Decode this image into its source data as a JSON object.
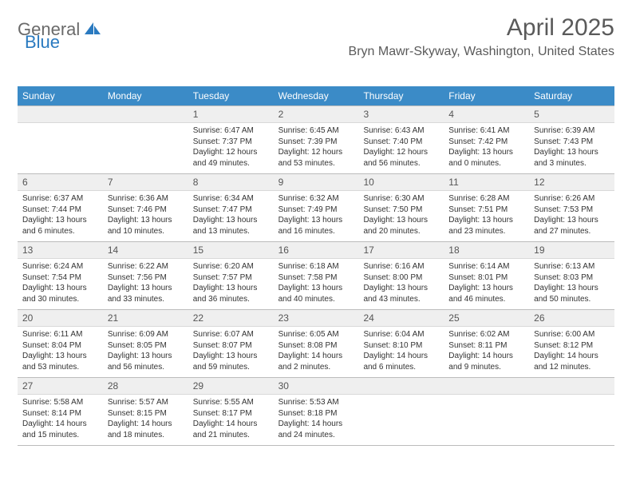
{
  "brand": {
    "text1": "General",
    "text2": "Blue"
  },
  "header": {
    "month_title": "April 2025",
    "location": "Bryn Mawr-Skyway, Washington, United States"
  },
  "colors": {
    "header_bar": "#3b8bc7",
    "brand_grey": "#6a6a6a",
    "brand_blue": "#2a7ac0",
    "text": "#333333",
    "daynum_bg": "#efefef",
    "grid_border": "#bcbcbc"
  },
  "typography": {
    "month_title_fontsize": 30,
    "location_fontsize": 16,
    "dow_fontsize": 12,
    "daynum_fontsize": 12,
    "body_fontsize": 10
  },
  "days_of_week": [
    "Sunday",
    "Monday",
    "Tuesday",
    "Wednesday",
    "Thursday",
    "Friday",
    "Saturday"
  ],
  "weeks": [
    [
      {
        "n": "",
        "sunrise": "",
        "sunset": "",
        "daylight": ""
      },
      {
        "n": "",
        "sunrise": "",
        "sunset": "",
        "daylight": ""
      },
      {
        "n": "1",
        "sunrise": "Sunrise: 6:47 AM",
        "sunset": "Sunset: 7:37 PM",
        "daylight": "Daylight: 12 hours and 49 minutes."
      },
      {
        "n": "2",
        "sunrise": "Sunrise: 6:45 AM",
        "sunset": "Sunset: 7:39 PM",
        "daylight": "Daylight: 12 hours and 53 minutes."
      },
      {
        "n": "3",
        "sunrise": "Sunrise: 6:43 AM",
        "sunset": "Sunset: 7:40 PM",
        "daylight": "Daylight: 12 hours and 56 minutes."
      },
      {
        "n": "4",
        "sunrise": "Sunrise: 6:41 AM",
        "sunset": "Sunset: 7:42 PM",
        "daylight": "Daylight: 13 hours and 0 minutes."
      },
      {
        "n": "5",
        "sunrise": "Sunrise: 6:39 AM",
        "sunset": "Sunset: 7:43 PM",
        "daylight": "Daylight: 13 hours and 3 minutes."
      }
    ],
    [
      {
        "n": "6",
        "sunrise": "Sunrise: 6:37 AM",
        "sunset": "Sunset: 7:44 PM",
        "daylight": "Daylight: 13 hours and 6 minutes."
      },
      {
        "n": "7",
        "sunrise": "Sunrise: 6:36 AM",
        "sunset": "Sunset: 7:46 PM",
        "daylight": "Daylight: 13 hours and 10 minutes."
      },
      {
        "n": "8",
        "sunrise": "Sunrise: 6:34 AM",
        "sunset": "Sunset: 7:47 PM",
        "daylight": "Daylight: 13 hours and 13 minutes."
      },
      {
        "n": "9",
        "sunrise": "Sunrise: 6:32 AM",
        "sunset": "Sunset: 7:49 PM",
        "daylight": "Daylight: 13 hours and 16 minutes."
      },
      {
        "n": "10",
        "sunrise": "Sunrise: 6:30 AM",
        "sunset": "Sunset: 7:50 PM",
        "daylight": "Daylight: 13 hours and 20 minutes."
      },
      {
        "n": "11",
        "sunrise": "Sunrise: 6:28 AM",
        "sunset": "Sunset: 7:51 PM",
        "daylight": "Daylight: 13 hours and 23 minutes."
      },
      {
        "n": "12",
        "sunrise": "Sunrise: 6:26 AM",
        "sunset": "Sunset: 7:53 PM",
        "daylight": "Daylight: 13 hours and 27 minutes."
      }
    ],
    [
      {
        "n": "13",
        "sunrise": "Sunrise: 6:24 AM",
        "sunset": "Sunset: 7:54 PM",
        "daylight": "Daylight: 13 hours and 30 minutes."
      },
      {
        "n": "14",
        "sunrise": "Sunrise: 6:22 AM",
        "sunset": "Sunset: 7:56 PM",
        "daylight": "Daylight: 13 hours and 33 minutes."
      },
      {
        "n": "15",
        "sunrise": "Sunrise: 6:20 AM",
        "sunset": "Sunset: 7:57 PM",
        "daylight": "Daylight: 13 hours and 36 minutes."
      },
      {
        "n": "16",
        "sunrise": "Sunrise: 6:18 AM",
        "sunset": "Sunset: 7:58 PM",
        "daylight": "Daylight: 13 hours and 40 minutes."
      },
      {
        "n": "17",
        "sunrise": "Sunrise: 6:16 AM",
        "sunset": "Sunset: 8:00 PM",
        "daylight": "Daylight: 13 hours and 43 minutes."
      },
      {
        "n": "18",
        "sunrise": "Sunrise: 6:14 AM",
        "sunset": "Sunset: 8:01 PM",
        "daylight": "Daylight: 13 hours and 46 minutes."
      },
      {
        "n": "19",
        "sunrise": "Sunrise: 6:13 AM",
        "sunset": "Sunset: 8:03 PM",
        "daylight": "Daylight: 13 hours and 50 minutes."
      }
    ],
    [
      {
        "n": "20",
        "sunrise": "Sunrise: 6:11 AM",
        "sunset": "Sunset: 8:04 PM",
        "daylight": "Daylight: 13 hours and 53 minutes."
      },
      {
        "n": "21",
        "sunrise": "Sunrise: 6:09 AM",
        "sunset": "Sunset: 8:05 PM",
        "daylight": "Daylight: 13 hours and 56 minutes."
      },
      {
        "n": "22",
        "sunrise": "Sunrise: 6:07 AM",
        "sunset": "Sunset: 8:07 PM",
        "daylight": "Daylight: 13 hours and 59 minutes."
      },
      {
        "n": "23",
        "sunrise": "Sunrise: 6:05 AM",
        "sunset": "Sunset: 8:08 PM",
        "daylight": "Daylight: 14 hours and 2 minutes."
      },
      {
        "n": "24",
        "sunrise": "Sunrise: 6:04 AM",
        "sunset": "Sunset: 8:10 PM",
        "daylight": "Daylight: 14 hours and 6 minutes."
      },
      {
        "n": "25",
        "sunrise": "Sunrise: 6:02 AM",
        "sunset": "Sunset: 8:11 PM",
        "daylight": "Daylight: 14 hours and 9 minutes."
      },
      {
        "n": "26",
        "sunrise": "Sunrise: 6:00 AM",
        "sunset": "Sunset: 8:12 PM",
        "daylight": "Daylight: 14 hours and 12 minutes."
      }
    ],
    [
      {
        "n": "27",
        "sunrise": "Sunrise: 5:58 AM",
        "sunset": "Sunset: 8:14 PM",
        "daylight": "Daylight: 14 hours and 15 minutes."
      },
      {
        "n": "28",
        "sunrise": "Sunrise: 5:57 AM",
        "sunset": "Sunset: 8:15 PM",
        "daylight": "Daylight: 14 hours and 18 minutes."
      },
      {
        "n": "29",
        "sunrise": "Sunrise: 5:55 AM",
        "sunset": "Sunset: 8:17 PM",
        "daylight": "Daylight: 14 hours and 21 minutes."
      },
      {
        "n": "30",
        "sunrise": "Sunrise: 5:53 AM",
        "sunset": "Sunset: 8:18 PM",
        "daylight": "Daylight: 14 hours and 24 minutes."
      },
      {
        "n": "",
        "sunrise": "",
        "sunset": "",
        "daylight": ""
      },
      {
        "n": "",
        "sunrise": "",
        "sunset": "",
        "daylight": ""
      },
      {
        "n": "",
        "sunrise": "",
        "sunset": "",
        "daylight": ""
      }
    ]
  ]
}
